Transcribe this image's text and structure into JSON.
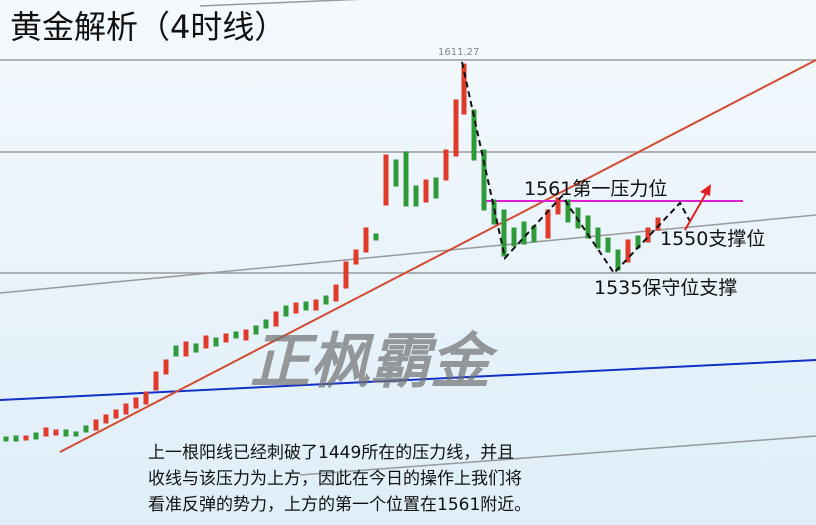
{
  "title": "黄金解析（4时线）",
  "price_label": "1611.27",
  "annotations": [
    "1561第一压力位",
    "1550支撑位",
    "1535保守位支撑"
  ],
  "watermark": "正枫霸金",
  "commentary": [
    "上一根阳线已经刺破了1449所在的压力线，并且",
    "收线与该压力为上方，因此在今日的操作上我们将",
    "看准反弹的势力，上方的第一个位置在1561附近。"
  ]
}
